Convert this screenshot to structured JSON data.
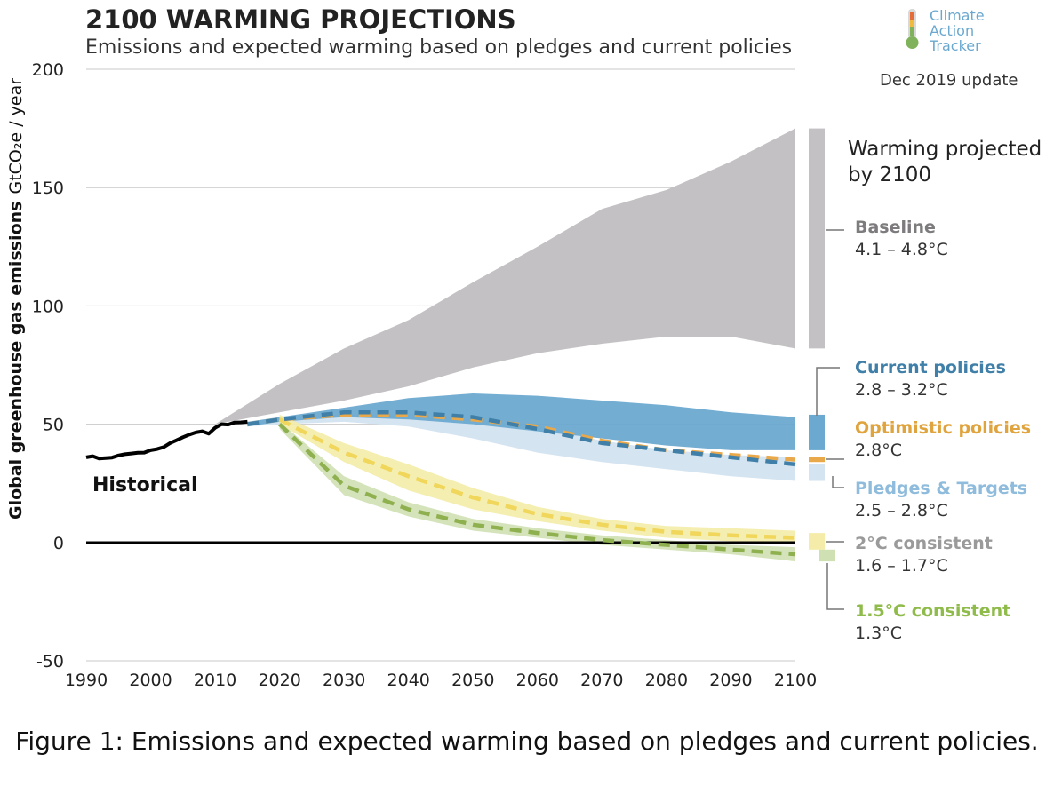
{
  "title": "2100 WARMING PROJECTIONS",
  "subtitle": "Emissions and expected warming based on pledges and current policies",
  "update_note": "Dec 2019 update",
  "logo": {
    "line1": "Climate",
    "line2": "Action",
    "line3": "Tracker",
    "icon": "thermometer-icon"
  },
  "caption": "Figure 1: Emissions and expected warming based on pledges and current policies.",
  "chart_data": {
    "type": "area",
    "ylabel_main": "Global greenhouse gas emissions",
    "ylabel_unit": "GtCO₂e / year",
    "ylim": [
      -50,
      200
    ],
    "xlim": [
      1990,
      2100
    ],
    "yticks": [
      -50,
      0,
      50,
      100,
      150,
      200
    ],
    "xticks": [
      1990,
      2000,
      2010,
      2020,
      2030,
      2040,
      2050,
      2060,
      2070,
      2080,
      2090,
      2100
    ],
    "grid": true,
    "annotation_historical": "Historical",
    "warming_title": [
      "Warming projected",
      "by 2100"
    ],
    "historical": {
      "x": [
        1990,
        1991,
        1992,
        1993,
        1994,
        1995,
        1996,
        1997,
        1998,
        1999,
        2000,
        2001,
        2002,
        2003,
        2004,
        2005,
        2006,
        2007,
        2008,
        2009,
        2010,
        2011,
        2012,
        2013,
        2014,
        2015
      ],
      "y": [
        36,
        36.5,
        35.5,
        35.7,
        35.9,
        36.8,
        37.3,
        37.6,
        37.9,
        38,
        39,
        39.5,
        40.3,
        42,
        43.2,
        44.5,
        45.6,
        46.5,
        47,
        46,
        48.5,
        50,
        49.8,
        50.7,
        50.8,
        51
      ]
    },
    "series": [
      {
        "name": "Baseline",
        "range": "4.1 – 4.8°C",
        "color": "#c3c1c3",
        "text_color": "#7d7b7d",
        "x": [
          2010,
          2020,
          2030,
          2040,
          2050,
          2060,
          2070,
          2080,
          2090,
          2100
        ],
        "upper": [
          50,
          67,
          82,
          94,
          110,
          125,
          141,
          149,
          161,
          175
        ],
        "lower": [
          50,
          55,
          60,
          66,
          74,
          80,
          84,
          87,
          87,
          82
        ]
      },
      {
        "name": "Current policies",
        "range": "2.8 – 3.2°C",
        "color": "#6ba9d0",
        "text_color": "#3f7fa8",
        "x": [
          2015,
          2020,
          2030,
          2040,
          2050,
          2060,
          2070,
          2080,
          2090,
          2100
        ],
        "upper": [
          51,
          53,
          57,
          61,
          63,
          62,
          60,
          58,
          55,
          53
        ],
        "lower": [
          49,
          51,
          53,
          52,
          50,
          47,
          44,
          41,
          39,
          39
        ],
        "median": [
          50,
          52,
          55,
          55,
          53,
          48,
          42,
          39,
          36,
          33
        ]
      },
      {
        "name": "Optimistic policies",
        "range": "2.8°C",
        "color": "#e9a84a",
        "text_color": "#e0a43f",
        "x": [
          2015,
          2020,
          2030,
          2040,
          2050,
          2060,
          2070,
          2080,
          2090,
          2100
        ],
        "median": [
          50,
          52,
          54,
          54,
          52,
          49,
          43,
          39,
          37,
          35
        ]
      },
      {
        "name": "Pledges & Targets",
        "range": "2.5 – 2.8°C",
        "color": "#d4e4f1",
        "text_color": "#8fbcdc",
        "x": [
          2015,
          2020,
          2030,
          2040,
          2050,
          2060,
          2070,
          2080,
          2090,
          2100
        ],
        "upper": [
          50,
          52,
          54,
          54,
          52,
          49,
          43,
          39,
          37,
          36
        ],
        "lower": [
          49,
          50,
          51,
          49,
          44,
          38,
          34,
          31,
          28,
          26
        ]
      },
      {
        "name": "2°C consistent",
        "range": "1.6 – 1.7°C",
        "color": "#f4eca8",
        "line_color": "#f0d65a",
        "text_color": "#9a9a9a",
        "x": [
          2020,
          2030,
          2040,
          2050,
          2060,
          2070,
          2080,
          2090,
          2100
        ],
        "upper": [
          54,
          42,
          33,
          23,
          15,
          10,
          7,
          6,
          5
        ],
        "lower": [
          50,
          34,
          22,
          14,
          9,
          5,
          2,
          0.5,
          0
        ],
        "median": [
          52,
          38,
          28,
          19,
          12,
          7.5,
          4.5,
          3,
          2
        ]
      },
      {
        "name": "1.5°C consistent",
        "range": "1.3°C",
        "color": "#cfe0b3",
        "line_color": "#8fb04f",
        "text_color": "#8fbb4a",
        "x": [
          2020,
          2030,
          2040,
          2050,
          2060,
          2070,
          2080,
          2090,
          2100
        ],
        "upper": [
          51,
          28,
          17,
          10,
          6,
          3,
          1,
          -1,
          -2
        ],
        "lower": [
          48,
          20,
          11,
          5,
          2,
          -1,
          -3,
          -5,
          -8
        ],
        "median": [
          50,
          24,
          14,
          7.5,
          4,
          1,
          -1,
          -3,
          -5
        ]
      }
    ],
    "warming_bars": [
      {
        "series": "Baseline",
        "bottom": 82,
        "top": 175
      },
      {
        "series": "Current policies",
        "bottom": 39,
        "top": 54
      },
      {
        "series": "Optimistic policies",
        "bottom": 34,
        "top": 36
      },
      {
        "series": "Pledges & Targets",
        "bottom": 26,
        "top": 33
      },
      {
        "series": "2°C consistent",
        "bottom": -3,
        "top": 4
      },
      {
        "series": "1.5°C consistent",
        "bottom": -8,
        "top": -3
      }
    ]
  }
}
